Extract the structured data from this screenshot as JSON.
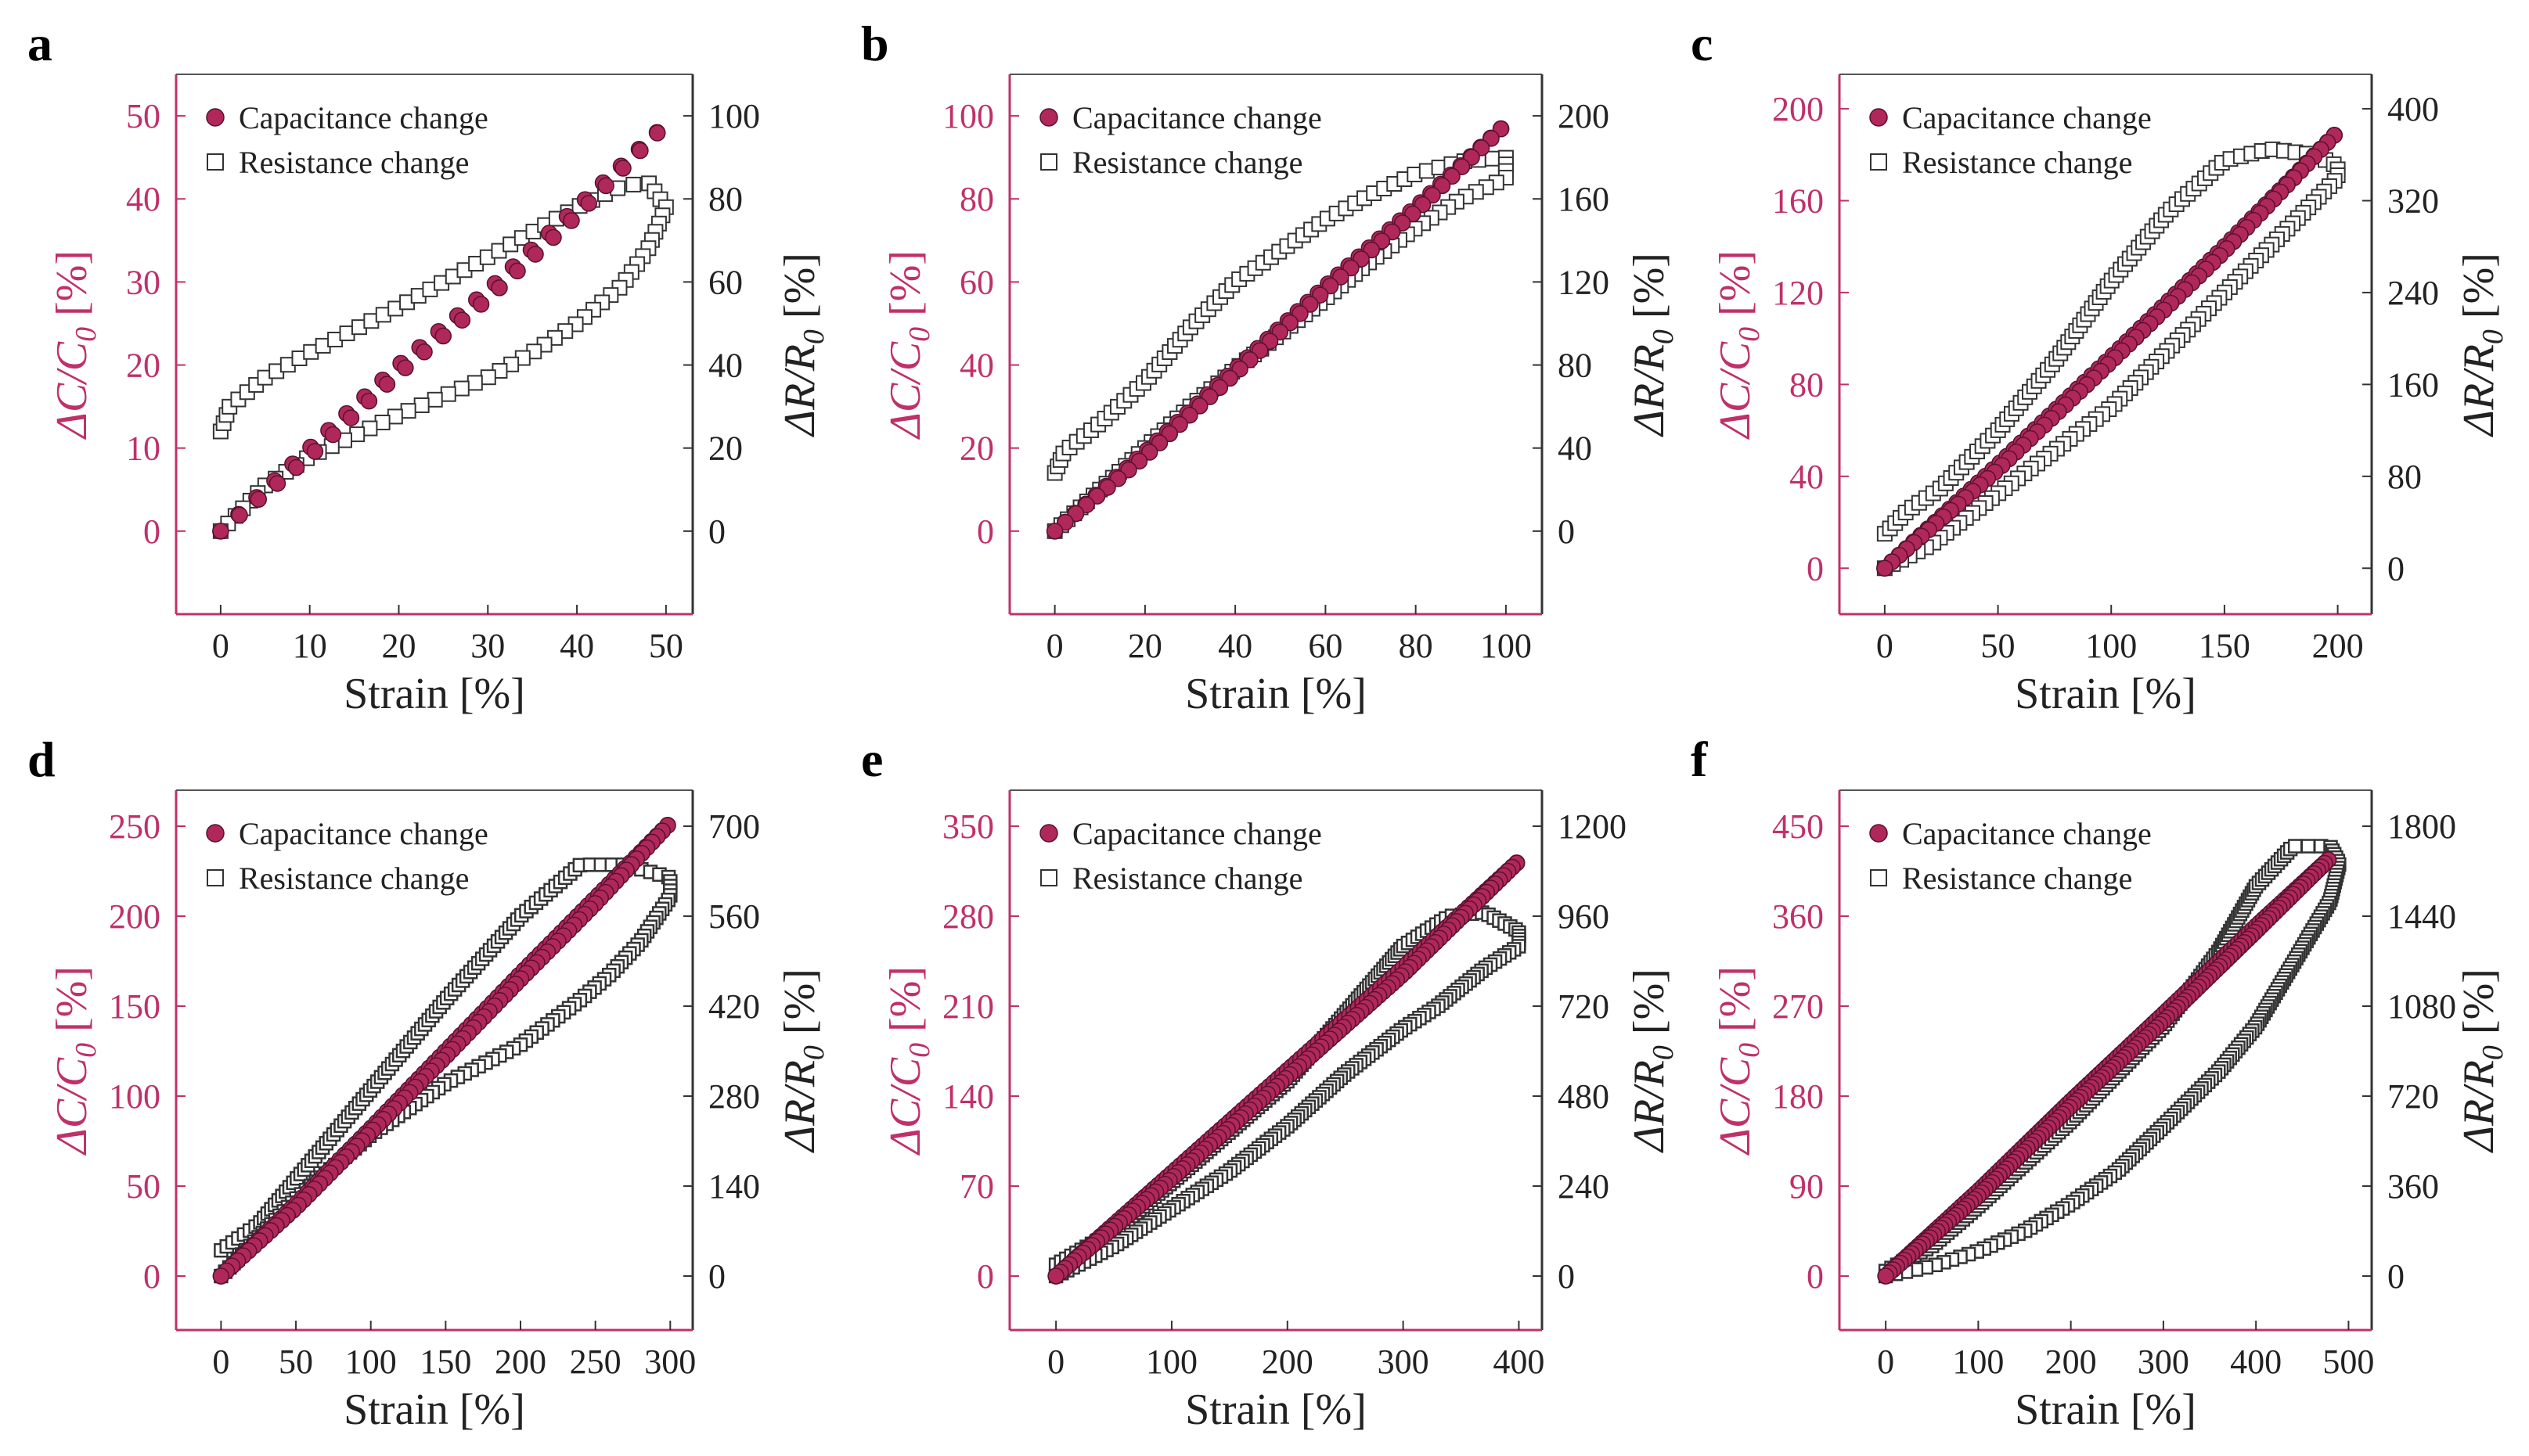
{
  "figure": {
    "legend": {
      "capacitance": "Capacitance change",
      "resistance": "Resistance change"
    },
    "xlabel": "Strain [%]",
    "ylabel_left_prefix": "ΔC/C",
    "ylabel_left_sub": "0",
    "ylabel_left_suffix": " [%]",
    "ylabel_right_prefix": "ΔR/R",
    "ylabel_right_sub": "0",
    "ylabel_right_suffix": " [%]",
    "colors": {
      "capacitance": "#b0285a",
      "resistance_marker": "#ffffff",
      "resistance_edge": "#333333",
      "left_axis_text": "#c0306a",
      "frame": "#c0306a"
    },
    "legend_placement": "top-left"
  },
  "chart_data": [
    {
      "panel": "a",
      "type": "scatter",
      "max_strain": 50,
      "xlim": [
        -5,
        53
      ],
      "xticks": [
        0,
        10,
        20,
        30,
        40,
        50
      ],
      "ylim_left": [
        -10,
        55
      ],
      "yticks_left": [
        0,
        10,
        20,
        30,
        40,
        50
      ],
      "ylim_right": [
        -20,
        110
      ],
      "yticks_right": [
        0,
        20,
        40,
        60,
        80,
        100
      ],
      "series": [
        {
          "name": "Capacitance change",
          "axis": "left",
          "points": [
            [
              0,
              0
            ],
            [
              10,
              10
            ],
            [
              20,
              20
            ],
            [
              30,
              29
            ],
            [
              40,
              39
            ],
            [
              50,
              49
            ],
            [
              40,
              38
            ],
            [
              30,
              28
            ],
            [
              20,
              19
            ],
            [
              10,
              9
            ],
            [
              0,
              0
            ]
          ]
        },
        {
          "name": "Resistance change",
          "axis": "right",
          "points": [
            [
              0,
              24
            ],
            [
              1,
              30
            ],
            [
              5,
              37
            ],
            [
              10,
              43
            ],
            [
              20,
              54
            ],
            [
              30,
              66
            ],
            [
              35,
              72
            ],
            [
              40,
              78
            ],
            [
              45,
              83
            ],
            [
              48,
              84
            ],
            [
              50,
              78
            ],
            [
              48,
              68
            ],
            [
              45,
              59
            ],
            [
              40,
              50
            ],
            [
              35,
              43
            ],
            [
              30,
              37
            ],
            [
              20,
              28
            ],
            [
              10,
              18
            ],
            [
              5,
              11
            ],
            [
              0,
              0
            ]
          ]
        }
      ]
    },
    {
      "panel": "b",
      "type": "scatter",
      "max_strain": 100,
      "xlim": [
        -10,
        108
      ],
      "xticks": [
        0,
        20,
        40,
        60,
        80,
        100
      ],
      "ylim_left": [
        -20,
        110
      ],
      "yticks_left": [
        0,
        20,
        40,
        60,
        80,
        100
      ],
      "ylim_right": [
        -40,
        220
      ],
      "yticks_right": [
        0,
        40,
        80,
        120,
        160,
        200
      ],
      "series": [
        {
          "name": "Capacitance change",
          "axis": "left",
          "points": [
            [
              0,
              0
            ],
            [
              20,
              19
            ],
            [
              40,
              39
            ],
            [
              60,
              59
            ],
            [
              80,
              78
            ],
            [
              100,
              98
            ],
            [
              80,
              77
            ],
            [
              60,
              58
            ],
            [
              40,
              38
            ],
            [
              20,
              18
            ],
            [
              0,
              0
            ]
          ]
        },
        {
          "name": "Resistance change",
          "axis": "right",
          "points": [
            [
              0,
              28
            ],
            [
              2,
              38
            ],
            [
              10,
              52
            ],
            [
              20,
              72
            ],
            [
              30,
              98
            ],
            [
              40,
              120
            ],
            [
              50,
              135
            ],
            [
              60,
              150
            ],
            [
              70,
              162
            ],
            [
              80,
              172
            ],
            [
              90,
              178
            ],
            [
              100,
              180
            ],
            [
              100,
              170
            ],
            [
              90,
              160
            ],
            [
              80,
              146
            ],
            [
              70,
              130
            ],
            [
              60,
              112
            ],
            [
              50,
              95
            ],
            [
              40,
              78
            ],
            [
              30,
              60
            ],
            [
              20,
              40
            ],
            [
              10,
              20
            ],
            [
              0,
              0
            ]
          ]
        }
      ]
    },
    {
      "panel": "c",
      "type": "scatter",
      "max_strain": 200,
      "xlim": [
        -20,
        215
      ],
      "xticks": [
        0,
        50,
        100,
        150,
        200
      ],
      "ylim_left": [
        -20,
        215
      ],
      "yticks_left": [
        0,
        40,
        80,
        120,
        160,
        200
      ],
      "ylim_right": [
        -40,
        430
      ],
      "yticks_right": [
        0,
        80,
        160,
        240,
        320,
        400
      ],
      "series": [
        {
          "name": "Capacitance change",
          "axis": "left",
          "points": [
            [
              0,
              0
            ],
            [
              50,
              45
            ],
            [
              100,
              92
            ],
            [
              150,
              140
            ],
            [
              200,
              190
            ],
            [
              150,
              138
            ],
            [
              100,
              90
            ],
            [
              50,
              43
            ],
            [
              0,
              0
            ]
          ]
        },
        {
          "name": "Resistance change",
          "axis": "right",
          "points": [
            [
              0,
              30
            ],
            [
              10,
              50
            ],
            [
              25,
              70
            ],
            [
              50,
              120
            ],
            [
              75,
              180
            ],
            [
              100,
              250
            ],
            [
              125,
              310
            ],
            [
              150,
              355
            ],
            [
              170,
              365
            ],
            [
              190,
              360
            ],
            [
              200,
              350
            ],
            [
              200,
              340
            ],
            [
              180,
              300
            ],
            [
              160,
              260
            ],
            [
              140,
              220
            ],
            [
              120,
              180
            ],
            [
              100,
              140
            ],
            [
              80,
              110
            ],
            [
              60,
              80
            ],
            [
              40,
              50
            ],
            [
              20,
              20
            ],
            [
              0,
              0
            ]
          ]
        }
      ]
    },
    {
      "panel": "d",
      "type": "scatter",
      "max_strain": 300,
      "xlim": [
        -30,
        315
      ],
      "xticks": [
        0,
        50,
        100,
        150,
        200,
        250,
        300
      ],
      "ylim_left": [
        -30,
        270
      ],
      "yticks_left": [
        0,
        50,
        100,
        150,
        200,
        250
      ],
      "ylim_right": [
        -84,
        756
      ],
      "yticks_right": [
        0,
        140,
        280,
        420,
        560,
        700
      ],
      "series": [
        {
          "name": "Capacitance change",
          "axis": "left",
          "points": [
            [
              0,
              0
            ],
            [
              50,
              40
            ],
            [
              100,
              82
            ],
            [
              150,
              125
            ],
            [
              200,
              168
            ],
            [
              250,
              210
            ],
            [
              300,
              252
            ],
            [
              250,
              207
            ],
            [
              200,
              165
            ],
            [
              150,
              122
            ],
            [
              100,
              80
            ],
            [
              50,
              38
            ],
            [
              0,
              0
            ]
          ]
        },
        {
          "name": "Resistance change",
          "axis": "right",
          "points": [
            [
              0,
              40
            ],
            [
              25,
              80
            ],
            [
              50,
              150
            ],
            [
              100,
              290
            ],
            [
              150,
              430
            ],
            [
              200,
              560
            ],
            [
              240,
              640
            ],
            [
              270,
              640
            ],
            [
              300,
              620
            ],
            [
              300,
              590
            ],
            [
              280,
              520
            ],
            [
              260,
              470
            ],
            [
              240,
              430
            ],
            [
              200,
              360
            ],
            [
              150,
              300
            ],
            [
              100,
              220
            ],
            [
              50,
              120
            ],
            [
              0,
              0
            ]
          ]
        }
      ]
    },
    {
      "panel": "e",
      "type": "scatter",
      "max_strain": 400,
      "xlim": [
        -40,
        420
      ],
      "xticks": [
        0,
        100,
        200,
        300,
        400
      ],
      "ylim_left": [
        -42,
        378
      ],
      "yticks_left": [
        0,
        70,
        140,
        210,
        280,
        350
      ],
      "ylim_right": [
        -144,
        1296
      ],
      "yticks_right": [
        0,
        240,
        480,
        720,
        960,
        1200
      ],
      "series": [
        {
          "name": "Capacitance change",
          "axis": "left",
          "points": [
            [
              0,
              0
            ],
            [
              100,
              80
            ],
            [
              200,
              160
            ],
            [
              300,
              240
            ],
            [
              400,
              323
            ],
            [
              300,
              235
            ],
            [
              200,
              155
            ],
            [
              100,
              76
            ],
            [
              0,
              0
            ]
          ]
        },
        {
          "name": "Resistance change",
          "axis": "right",
          "points": [
            [
              0,
              30
            ],
            [
              50,
              120
            ],
            [
              100,
              250
            ],
            [
              200,
              520
            ],
            [
              250,
              700
            ],
            [
              300,
              880
            ],
            [
              340,
              960
            ],
            [
              370,
              970
            ],
            [
              400,
              920
            ],
            [
              400,
              880
            ],
            [
              370,
              820
            ],
            [
              330,
              720
            ],
            [
              300,
              660
            ],
            [
              250,
              540
            ],
            [
              200,
              400
            ],
            [
              150,
              280
            ],
            [
              100,
              180
            ],
            [
              50,
              80
            ],
            [
              0,
              0
            ]
          ]
        }
      ]
    },
    {
      "panel": "f",
      "type": "scatter",
      "max_strain": 500,
      "xlim": [
        -50,
        525
      ],
      "xticks": [
        0,
        100,
        200,
        300,
        400,
        500
      ],
      "ylim_left": [
        -54,
        486
      ],
      "yticks_left": [
        0,
        90,
        180,
        270,
        360,
        450
      ],
      "ylim_right": [
        -216,
        1944
      ],
      "yticks_right": [
        0,
        360,
        720,
        1080,
        1440,
        1800
      ],
      "series": [
        {
          "name": "Capacitance change",
          "axis": "left",
          "points": [
            [
              0,
              0
            ],
            [
              100,
              85
            ],
            [
              200,
              175
            ],
            [
              300,
              262
            ],
            [
              400,
              350
            ],
            [
              480,
              418
            ],
            [
              400,
              345
            ],
            [
              300,
              255
            ],
            [
              200,
              170
            ],
            [
              100,
              80
            ],
            [
              0,
              0
            ]
          ]
        },
        {
          "name": "Resistance change",
          "axis": "right",
          "points": [
            [
              0,
              20
            ],
            [
              50,
              120
            ],
            [
              100,
              280
            ],
            [
              200,
              620
            ],
            [
              300,
              1000
            ],
            [
              360,
              1300
            ],
            [
              400,
              1560
            ],
            [
              440,
              1720
            ],
            [
              480,
              1720
            ],
            [
              490,
              1650
            ],
            [
              480,
              1500
            ],
            [
              440,
              1250
            ],
            [
              400,
              1000
            ],
            [
              360,
              820
            ],
            [
              300,
              600
            ],
            [
              250,
              420
            ],
            [
              200,
              290
            ],
            [
              150,
              180
            ],
            [
              100,
              100
            ],
            [
              50,
              40
            ],
            [
              0,
              0
            ]
          ]
        }
      ]
    }
  ]
}
